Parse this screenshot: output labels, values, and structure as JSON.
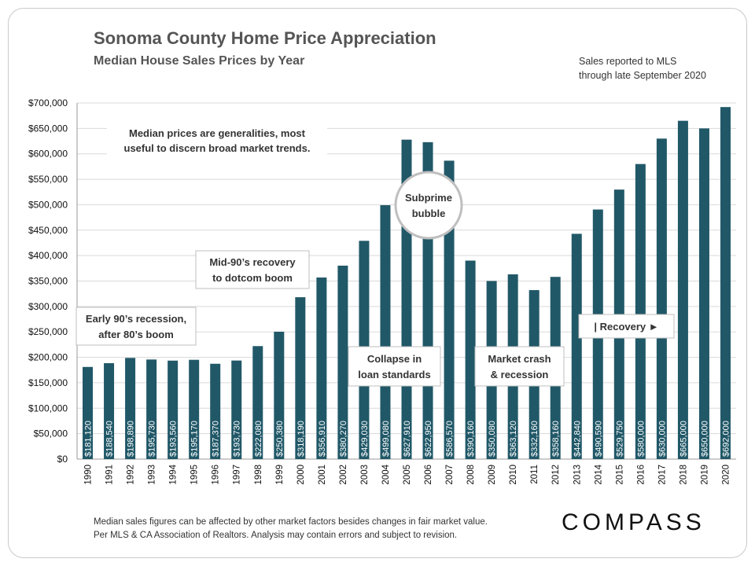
{
  "header": {
    "title": "Sonoma County Home Price Appreciation",
    "subtitle": "Median House Sales Prices by Year",
    "note_line1": "Sales reported to MLS",
    "note_line2": "through late September 2020"
  },
  "footer": {
    "line1": "Median sales figures can be affected by other market factors besides changes in fair market value.",
    "line2": "Per MLS & CA Association  of Realtors. Analysis may contain errors and subject to revision.",
    "brand": "COMPASS"
  },
  "colors": {
    "bar": "#215868",
    "grid": "#d9d9d9",
    "axis": "#999999"
  },
  "chart_data": {
    "type": "bar",
    "categories": [
      "1990",
      "1991",
      "1992",
      "1993",
      "1994",
      "1995",
      "1996",
      "1997",
      "1998",
      "1999",
      "2000",
      "2001",
      "2002",
      "2003",
      "2004",
      "2005",
      "2006",
      "2007",
      "2008",
      "2009",
      "2010",
      "2011",
      "2012",
      "2013",
      "2014",
      "2015",
      "2016",
      "2017",
      "2018",
      "2019",
      "2020"
    ],
    "values": [
      181120,
      188540,
      198890,
      195730,
      193560,
      195170,
      187370,
      193730,
      222080,
      250380,
      318190,
      356910,
      380270,
      429030,
      499080,
      627910,
      622950,
      586570,
      390160,
      350080,
      363120,
      332160,
      358160,
      442840,
      490590,
      529750,
      580000,
      630000,
      665000,
      650000,
      692000
    ],
    "value_labels": [
      "$181,120",
      "$188,540",
      "$198,890",
      "$195,730",
      "$193,560",
      "$195,170",
      "$187,370",
      "$193,730",
      "$222,080",
      "$250,380",
      "$318,190",
      "$356,910",
      "$380,270",
      "$429,030",
      "$499,080",
      "$627,910",
      "$622,950",
      "$586,570",
      "$390,160",
      "$350,080",
      "$363,120",
      "$332,160",
      "$358,160",
      "$442,840",
      "$490,590",
      "$529,750",
      "$580,000",
      "$630,000",
      "$665,000",
      "$650,000",
      "$692,000"
    ],
    "ylim": [
      0,
      700000
    ],
    "yticks": [
      0,
      50000,
      100000,
      150000,
      200000,
      250000,
      300000,
      350000,
      400000,
      450000,
      500000,
      550000,
      600000,
      650000,
      700000
    ],
    "ytick_labels": [
      "$0",
      "$50,000",
      "$100,000",
      "$150,000",
      "$200,000",
      "$250,000",
      "$300,000",
      "$350,000",
      "$400,000",
      "$450,000",
      "$500,000",
      "$550,000",
      "$600,000",
      "$650,000",
      "$700,000"
    ],
    "grid": true,
    "annotations": [
      {
        "id": "median-note",
        "lines": [
          "Median prices are generalities, most",
          "useful to discern broad market trends."
        ]
      },
      {
        "id": "early-90s",
        "lines": [
          "Early 90’s recession,",
          "after 80’s boom"
        ]
      },
      {
        "id": "mid-90s",
        "lines": [
          "Mid-90’s recovery",
          "to dotcom boom"
        ]
      },
      {
        "id": "subprime",
        "lines": [
          "Subprime",
          "bubble"
        ]
      },
      {
        "id": "collapse",
        "lines": [
          "Collapse in",
          "loan standards"
        ]
      },
      {
        "id": "crash",
        "lines": [
          "Market crash",
          "& recession"
        ]
      },
      {
        "id": "recovery",
        "lines": [
          "| Recovery ►"
        ]
      }
    ]
  }
}
